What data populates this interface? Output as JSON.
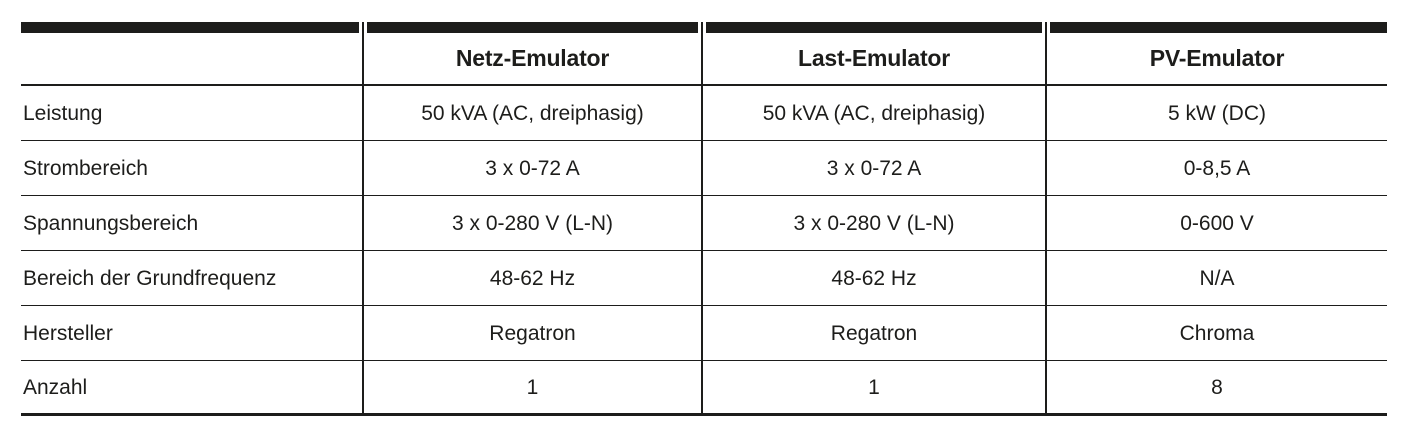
{
  "table": {
    "columns": [
      "",
      "Netz-Emulator",
      "Last-Emulator",
      "PV-Emulator"
    ],
    "rows": [
      {
        "label": "Leistung",
        "values": [
          "50 kVA (AC, dreiphasig)",
          "50 kVA (AC, dreiphasig)",
          "5 kW (DC)"
        ]
      },
      {
        "label": "Strombereich",
        "values": [
          "3 x 0-72 A",
          "3 x 0-72 A",
          "0-8,5 A"
        ]
      },
      {
        "label": "Spannungsbereich",
        "values": [
          "3 x 0-280 V (L-N)",
          "3 x 0-280 V (L-N)",
          "0-600 V"
        ]
      },
      {
        "label": "Bereich der Grundfrequenz",
        "values": [
          "48-62 Hz",
          "48-62 Hz",
          "N/A"
        ]
      },
      {
        "label": "Hersteller",
        "values": [
          "Regatron",
          "Regatron",
          "Chroma"
        ]
      },
      {
        "label": "Anzahl",
        "values": [
          "1",
          "1",
          "8"
        ]
      }
    ],
    "colors": {
      "ink": "#1d1d1b",
      "background": "#ffffff"
    }
  }
}
